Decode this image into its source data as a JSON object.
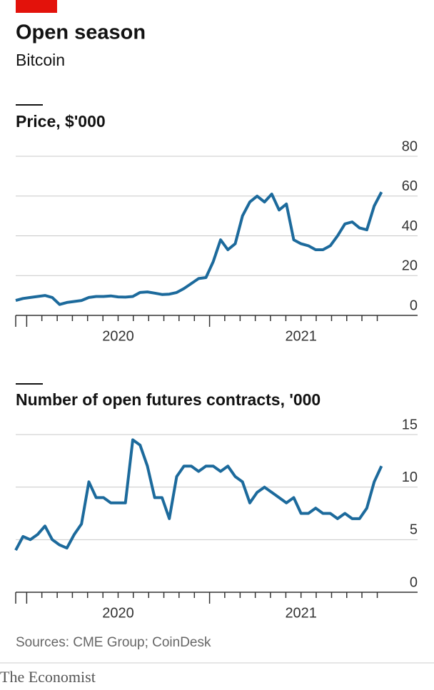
{
  "header": {
    "title": "Open season",
    "subtitle": "Bitcoin"
  },
  "chart_data": [
    {
      "type": "line",
      "title": "Price, $'000",
      "x": [
        2019.94,
        2019.98,
        2020.02,
        2020.06,
        2020.1,
        2020.14,
        2020.18,
        2020.22,
        2020.26,
        2020.3,
        2020.34,
        2020.38,
        2020.42,
        2020.46,
        2020.5,
        2020.54,
        2020.58,
        2020.62,
        2020.66,
        2020.7,
        2020.74,
        2020.78,
        2020.82,
        2020.86,
        2020.9,
        2020.94,
        2020.98,
        2021.02,
        2021.06,
        2021.1,
        2021.14,
        2021.18,
        2021.22,
        2021.26,
        2021.3,
        2021.34,
        2021.38,
        2021.42,
        2021.46,
        2021.5,
        2021.54,
        2021.58,
        2021.62,
        2021.66,
        2021.7,
        2021.74,
        2021.78,
        2021.82,
        2021.86,
        2021.9,
        2021.94
      ],
      "values": [
        7.5,
        8.5,
        9,
        9.5,
        10,
        9,
        5.5,
        6.5,
        7,
        7.5,
        9,
        9.5,
        9.5,
        9.8,
        9.3,
        9.2,
        9.5,
        11.5,
        11.8,
        11.2,
        10.5,
        10.7,
        11.5,
        13.5,
        16,
        18.5,
        19,
        27,
        38,
        33,
        36,
        50,
        57,
        60,
        57,
        61,
        53,
        56,
        38,
        36,
        35,
        33,
        33,
        35,
        40,
        46,
        47,
        44,
        43,
        55,
        62
      ],
      "color": "#1c6a9c",
      "ylim": [
        0,
        80
      ],
      "yticks": [
        0,
        20,
        40,
        60,
        80
      ],
      "grid": true,
      "xlim": [
        2019.94,
        2021.95
      ],
      "xticks": [
        {
          "value": 2020.5,
          "label": "2020"
        },
        {
          "value": 2021.5,
          "label": "2021"
        }
      ],
      "xminorticks": [
        2020,
        2020.083,
        2020.167,
        2020.25,
        2020.333,
        2020.417,
        2020.5,
        2020.583,
        2020.667,
        2020.75,
        2020.833,
        2020.917,
        2021,
        2021.083,
        2021.167,
        2021.25,
        2021.333,
        2021.417,
        2021.5,
        2021.583,
        2021.667,
        2021.75,
        2021.833,
        2021.917
      ]
    },
    {
      "type": "line",
      "title": "Number of open futures contracts, '000",
      "x": [
        2019.94,
        2019.98,
        2020.02,
        2020.06,
        2020.1,
        2020.14,
        2020.18,
        2020.22,
        2020.26,
        2020.3,
        2020.34,
        2020.38,
        2020.42,
        2020.46,
        2020.5,
        2020.54,
        2020.58,
        2020.62,
        2020.66,
        2020.7,
        2020.74,
        2020.78,
        2020.82,
        2020.86,
        2020.9,
        2020.94,
        2020.98,
        2021.02,
        2021.06,
        2021.1,
        2021.14,
        2021.18,
        2021.22,
        2021.26,
        2021.3,
        2021.34,
        2021.38,
        2021.42,
        2021.46,
        2021.5,
        2021.54,
        2021.58,
        2021.62,
        2021.66,
        2021.7,
        2021.74,
        2021.78,
        2021.82,
        2021.86,
        2021.9,
        2021.94
      ],
      "values": [
        4,
        5.3,
        5,
        5.5,
        6.3,
        5,
        4.5,
        4.2,
        5.5,
        6.5,
        10.5,
        9,
        9,
        8.5,
        8.5,
        8.5,
        14.5,
        14,
        12,
        9,
        9,
        7,
        11,
        12,
        12,
        11.5,
        12,
        12,
        11.5,
        12,
        11,
        10.5,
        8.5,
        9.5,
        10,
        9.5,
        9,
        8.5,
        9,
        7.5,
        7.5,
        8,
        7.5,
        7.5,
        7,
        7.5,
        7,
        7,
        8,
        10.5,
        12
      ],
      "color": "#1c6a9c",
      "ylim": [
        0,
        15
      ],
      "yticks": [
        0,
        5,
        10,
        15
      ],
      "grid": true,
      "xlim": [
        2019.94,
        2021.95
      ],
      "xticks": [
        {
          "value": 2020.5,
          "label": "2020"
        },
        {
          "value": 2021.5,
          "label": "2021"
        }
      ],
      "xminorticks": [
        2020,
        2020.083,
        2020.167,
        2020.25,
        2020.333,
        2020.417,
        2020.5,
        2020.583,
        2020.667,
        2020.75,
        2020.833,
        2020.917,
        2021,
        2021.083,
        2021.167,
        2021.25,
        2021.333,
        2021.417,
        2021.5,
        2021.583,
        2021.667,
        2021.75,
        2021.833,
        2021.917
      ]
    }
  ],
  "footer": {
    "source": "Sources: CME Group; CoinDesk",
    "brand": "The Economist"
  }
}
